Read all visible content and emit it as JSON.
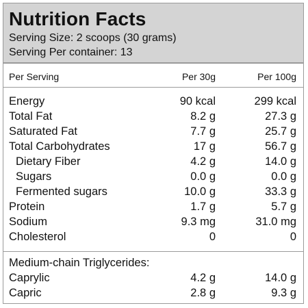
{
  "header": {
    "title": "Nutrition Facts",
    "serving_size": "Serving Size: 2 scoops (30 grams)",
    "servings_per_container": "Serving Per container: 13"
  },
  "columns": {
    "name": "Per Serving",
    "col1": "Per 30g",
    "col2": "Per 100g"
  },
  "rows": [
    {
      "name": "Energy",
      "v1": "90 kcal",
      "v2": "299 kcal"
    },
    {
      "name": "Total Fat",
      "v1": "8.2 g",
      "v2": "27.3 g"
    },
    {
      "name": "Saturated Fat",
      "v1": "7.7 g",
      "v2": "25.7 g"
    },
    {
      "name": "Total Carbohydrates",
      "v1": "17 g",
      "v2": "56.7 g"
    },
    {
      "name": "Dietary Fiber",
      "v1": "4.2 g",
      "v2": "14.0 g"
    },
    {
      "name": "Sugars",
      "v1": "0.0 g",
      "v2": "0.0 g"
    },
    {
      "name": "Fermented sugars",
      "v1": "10.0 g",
      "v2": "33.3 g"
    },
    {
      "name": "Protein",
      "v1": "1.7 g",
      "v2": "5.7 g"
    },
    {
      "name": "Sodium",
      "v1": "9.3 mg",
      "v2": "31.0 mg"
    },
    {
      "name": "Cholesterol",
      "v1": "0",
      "v2": "0"
    }
  ],
  "mct": {
    "heading": "Medium-chain Triglycerides:",
    "rows": [
      {
        "name": "Caprylic",
        "v1": "4.2 g",
        "v2": "14.0 g"
      },
      {
        "name": "Capric",
        "v1": "2.8 g",
        "v2": "9.3 g"
      }
    ]
  }
}
